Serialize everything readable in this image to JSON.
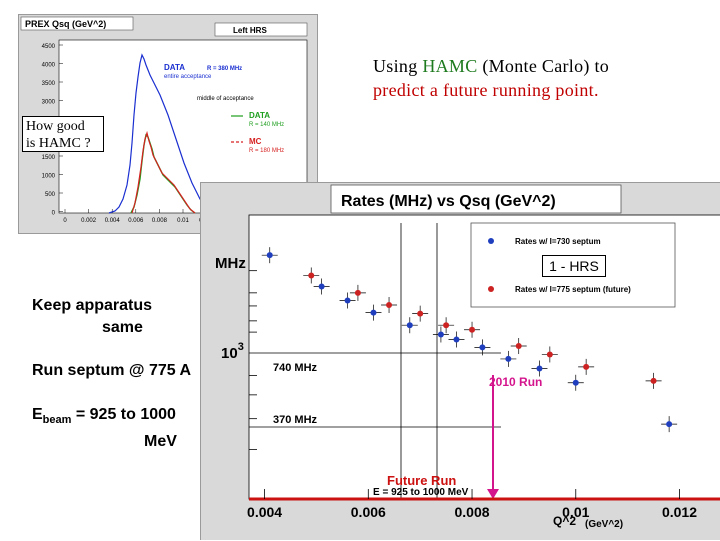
{
  "inset": {
    "title": "PREX Qsq  (GeV^2)",
    "corner_label": "Left HRS",
    "data_label": "DATA",
    "data_rate": "R = 380 MHz",
    "data_sub": "entire acceptance",
    "middle_label": "middle of acceptance",
    "data2_label": "DATA",
    "data2_rate": "R = 140 MHz",
    "mc_label": "MC",
    "mc_rate": "R = 180 MHz",
    "y_ticks": [
      "4500",
      "4000",
      "3500",
      "3000",
      "2500",
      "2000",
      "1500",
      "1000",
      "500",
      "0"
    ],
    "x_ticks": [
      "0",
      "0.002",
      "0.004",
      "0.006",
      "0.008",
      "0.01",
      "0.012",
      "0.014",
      "0.016",
      "0.018",
      "0.02"
    ]
  },
  "callout": {
    "line1": "How good",
    "line2": "is  HAMC ?"
  },
  "description": {
    "part1": "Using  ",
    "hamc": "HAMC",
    "part2": " (Monte Carlo)  to  ",
    "predict": "predict  a future  running   point."
  },
  "bullets": {
    "b1_line1": "Keep  apparatus",
    "b1_line2": "same",
    "b2": "Run septum @ 775 A",
    "b3_prefix": "E",
    "b3_sub": "beam",
    "b3_rest": " = 925  to 1000",
    "b3_line2": "MeV"
  },
  "hrs_label": "1 - HRS",
  "chart_data": {
    "type": "scatter",
    "title": "Rates (MHz) vs Qsq (GeV^2)",
    "ylabel": "MHz",
    "xlabel": "Q^2",
    "xunit": "(GeV^2)",
    "xlim": [
      0.0037,
      0.0128
    ],
    "x_ticks": [
      0.004,
      0.006,
      0.008,
      0.01,
      0.012
    ],
    "x_tick_labels": [
      "0.004",
      "0.006",
      "0.008",
      "0.01",
      "0.012"
    ],
    "y_tick_label": "10",
    "y_tick_exp": "3",
    "hline_labels": [
      "740 MHz",
      "370 MHz"
    ],
    "annotation_run": "2010 Run",
    "annotation_future": "Future Run",
    "annotation_energy": "E = 925 to 1000 MeV",
    "series": [
      {
        "name": "Rates w/ I=730 septum",
        "color": "#1f3fbf",
        "points": [
          [
            0.0041,
            1850
          ],
          [
            0.0051,
            1380
          ],
          [
            0.0056,
            1210
          ],
          [
            0.0061,
            1080
          ],
          [
            0.0068,
            960
          ],
          [
            0.0074,
            880
          ],
          [
            0.0077,
            840
          ],
          [
            0.0082,
            780
          ],
          [
            0.0087,
            700
          ],
          [
            0.0093,
            640
          ],
          [
            0.01,
            560
          ],
          [
            0.0118,
            380
          ]
        ]
      },
      {
        "name": "Rates w/ I=775 septum (future)",
        "color": "#cc2222",
        "points": [
          [
            0.0049,
            1530
          ],
          [
            0.0058,
            1300
          ],
          [
            0.0064,
            1160
          ],
          [
            0.007,
            1070
          ],
          [
            0.0075,
            960
          ],
          [
            0.008,
            920
          ],
          [
            0.0089,
            790
          ],
          [
            0.0095,
            730
          ],
          [
            0.0102,
            650
          ],
          [
            0.0115,
            570
          ]
        ]
      }
    ]
  }
}
